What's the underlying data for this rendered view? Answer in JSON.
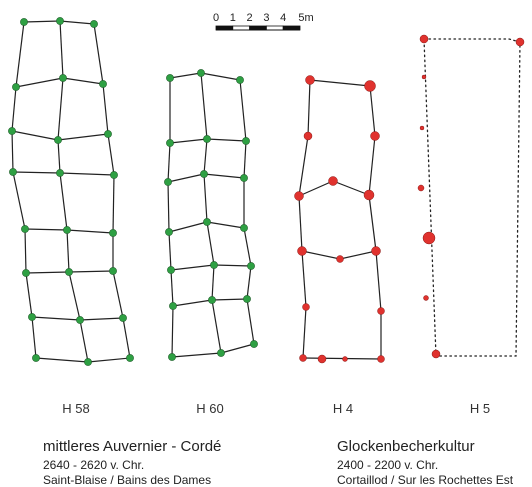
{
  "scale_bar": {
    "ticks": [
      "0",
      "1",
      "2",
      "3",
      "4",
      "5m"
    ]
  },
  "houses": [
    {
      "label": "H 58"
    },
    {
      "label": "H 60"
    },
    {
      "label": "H 4"
    },
    {
      "label": "H 5"
    }
  ],
  "captions": {
    "left": {
      "title": "mittleres Auvernier - Cordé",
      "date": "2640 - 2620 v. Chr.",
      "site": "Saint-Blaise / Bains des Dames"
    },
    "right": {
      "title": "Glockenbecherkultur",
      "date": "2400 - 2200 v. Chr.",
      "site": "Cortaillod / Sur les Rochettes Est"
    }
  },
  "colors": {
    "green_post": "#2ea043",
    "red_post": "#e0322e",
    "line": "#222222"
  }
}
